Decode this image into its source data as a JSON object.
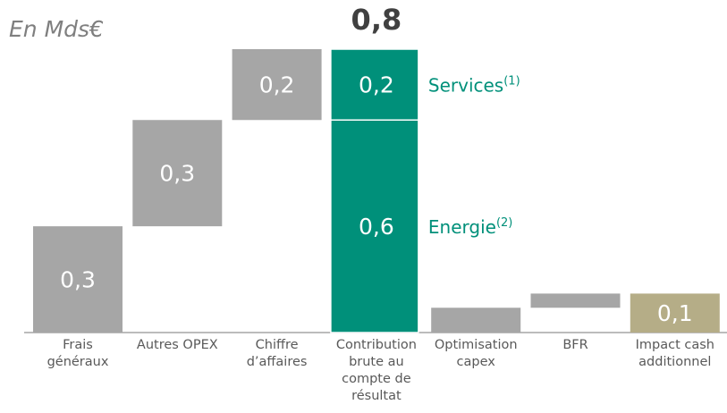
{
  "chart_data": {
    "type": "waterfall",
    "subtitle": "En Mds€",
    "total": {
      "value": 0.8,
      "label": "0,8"
    },
    "ylim": [
      0,
      0.8
    ],
    "bars": [
      {
        "category": "Frais généraux",
        "kind": "step",
        "value": 0.3,
        "value_label": "0,3",
        "color": "#a6a6a6"
      },
      {
        "category": "Autres OPEX",
        "kind": "step",
        "value": 0.3,
        "value_label": "0,3",
        "color": "#a6a6a6"
      },
      {
        "category": "Chiffre d’affaires",
        "kind": "step",
        "value": 0.2,
        "value_label": "0,2",
        "color": "#a6a6a6"
      },
      {
        "category": "Contribution brute au compte de résultat",
        "kind": "stack",
        "color": "#00907a",
        "segments": [
          {
            "name": "Energie",
            "note": "(2)",
            "value": 0.6,
            "value_label": "0,6"
          },
          {
            "name": "Services",
            "note": "(1)",
            "value": 0.2,
            "value_label": "0,2"
          }
        ]
      },
      {
        "category": "Optimisation capex",
        "kind": "step",
        "value": 0.07,
        "color": "#a6a6a6"
      },
      {
        "category": "BFR",
        "kind": "step",
        "value": 0.04,
        "color": "#a6a6a6"
      },
      {
        "category": "Impact cash additionnel",
        "kind": "total",
        "value": 0.11,
        "value_label": "0,1",
        "color": "#b5ad87"
      }
    ]
  }
}
